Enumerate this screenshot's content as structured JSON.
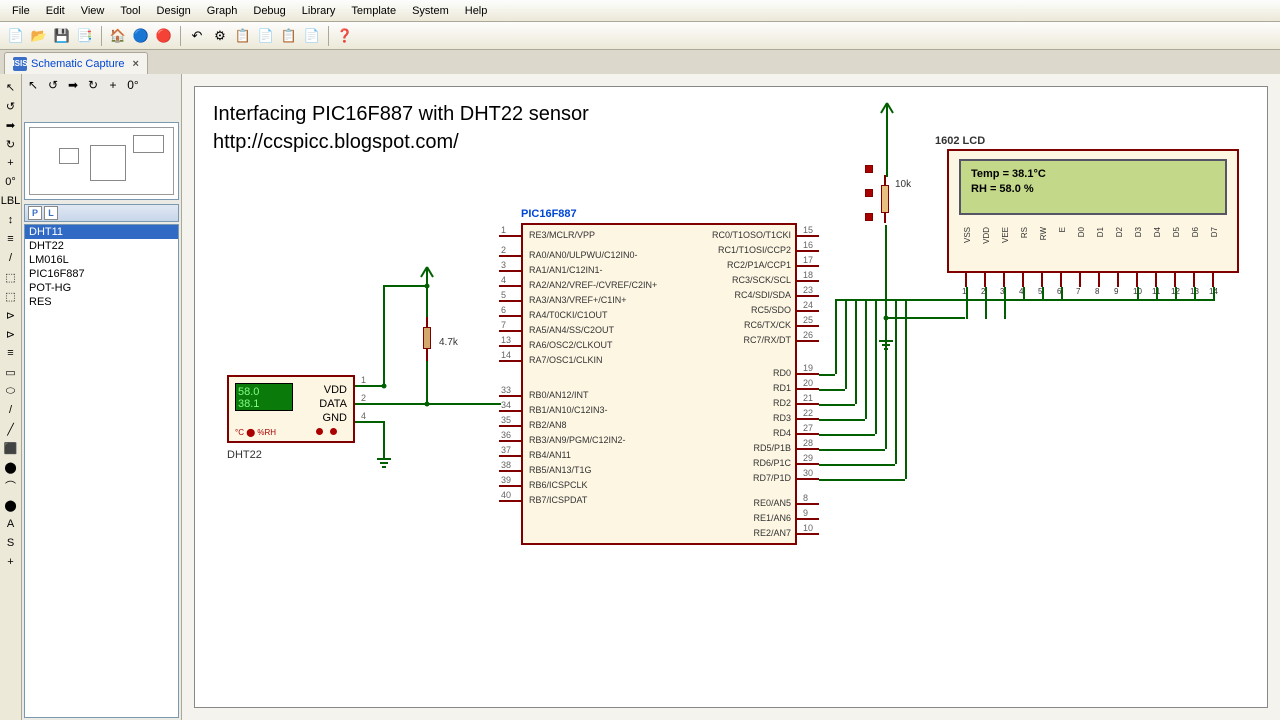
{
  "menubar": [
    "File",
    "Edit",
    "View",
    "Tool",
    "Design",
    "Graph",
    "Debug",
    "Library",
    "Template",
    "System",
    "Help"
  ],
  "toolbar_icons": [
    "📄",
    "📂",
    "💾",
    "📑",
    "|",
    "🏠",
    "🔵",
    "🔴",
    "|",
    "↶",
    "⚙",
    "📋",
    "📄",
    "📋",
    "📄",
    "|",
    "❓"
  ],
  "tab": {
    "label": "Schematic Capture",
    "close": "×"
  },
  "left_tools": [
    "↖",
    "↺",
    "➡",
    "↻",
    "+",
    "0°",
    "LBL",
    "↕",
    "≡",
    "/",
    "⬚",
    "⬚",
    "⊳",
    "⊳",
    "≡",
    "▭",
    "⬭",
    "/",
    "╱",
    "⬛",
    "⬤",
    "⌒",
    "⬤",
    "A",
    "S",
    "+"
  ],
  "top_buttons": [
    "↖",
    "↺",
    "➡",
    "↻",
    "+",
    "0°"
  ],
  "pl_header_btns": [
    "P",
    "L"
  ],
  "devices": [
    {
      "name": "DHT11",
      "sel": true
    },
    {
      "name": "DHT22",
      "sel": false
    },
    {
      "name": "LM016L",
      "sel": false
    },
    {
      "name": "PIC16F887",
      "sel": false
    },
    {
      "name": "POT-HG",
      "sel": false
    },
    {
      "name": "RES",
      "sel": false
    }
  ],
  "schematic": {
    "title": "Interfacing PIC16F887 with DHT22 sensor",
    "url": "http://ccspicc.blogspot.com/",
    "chip_label": "PIC16F887",
    "sensor_label": "DHT22",
    "sensor_lcd_line1": "58.0",
    "sensor_lcd_line2": "38.1",
    "sensor_foot": "°C ⬤ %RH",
    "sensor_pins": [
      "VDD",
      "DATA",
      "GND"
    ],
    "sensor_pin_nums": [
      "1",
      "2",
      "4"
    ],
    "res1": "4.7k",
    "res2": "10k",
    "lcd_label": "1602 LCD",
    "lcd_line1": "Temp = 38.1°C",
    "lcd_line2": "RH   = 58.0 %",
    "lcd_pins": [
      "VSS",
      "VDD",
      "VEE",
      "RS",
      "RW",
      "E",
      "D0",
      "D1",
      "D2",
      "D3",
      "D4",
      "D5",
      "D6",
      "D7"
    ],
    "left_pins": [
      {
        "n": "1",
        "name": "RE3/MCLR/VPP"
      },
      {
        "n": "2",
        "name": "RA0/AN0/ULPWU/C12IN0-"
      },
      {
        "n": "3",
        "name": "RA1/AN1/C12IN1-"
      },
      {
        "n": "4",
        "name": "RA2/AN2/VREF-/CVREF/C2IN+"
      },
      {
        "n": "5",
        "name": "RA3/AN3/VREF+/C1IN+"
      },
      {
        "n": "6",
        "name": "RA4/T0CKI/C1OUT"
      },
      {
        "n": "7",
        "name": "RA5/AN4/SS/C2OUT"
      },
      {
        "n": "13",
        "name": "RA6/OSC2/CLKOUT"
      },
      {
        "n": "14",
        "name": "RA7/OSC1/CLKIN"
      },
      {
        "n": "33",
        "name": "RB0/AN12/INT"
      },
      {
        "n": "34",
        "name": "RB1/AN10/C12IN3-"
      },
      {
        "n": "35",
        "name": "RB2/AN8"
      },
      {
        "n": "36",
        "name": "RB3/AN9/PGM/C12IN2-"
      },
      {
        "n": "37",
        "name": "RB4/AN11"
      },
      {
        "n": "38",
        "name": "RB5/AN13/T1G"
      },
      {
        "n": "39",
        "name": "RB6/ICSPCLK"
      },
      {
        "n": "40",
        "name": "RB7/ICSPDAT"
      }
    ],
    "right_pins": [
      {
        "n": "15",
        "name": "RC0/T1OSO/T1CKI"
      },
      {
        "n": "16",
        "name": "RC1/T1OSI/CCP2"
      },
      {
        "n": "17",
        "name": "RC2/P1A/CCP1"
      },
      {
        "n": "18",
        "name": "RC3/SCK/SCL"
      },
      {
        "n": "23",
        "name": "RC4/SDI/SDA"
      },
      {
        "n": "24",
        "name": "RC5/SDO"
      },
      {
        "n": "25",
        "name": "RC6/TX/CK"
      },
      {
        "n": "26",
        "name": "RC7/RX/DT"
      },
      {
        "n": "19",
        "name": "RD0"
      },
      {
        "n": "20",
        "name": "RD1"
      },
      {
        "n": "21",
        "name": "RD2"
      },
      {
        "n": "22",
        "name": "RD3"
      },
      {
        "n": "27",
        "name": "RD4"
      },
      {
        "n": "28",
        "name": "RD5/P1B"
      },
      {
        "n": "29",
        "name": "RD6/P1C"
      },
      {
        "n": "30",
        "name": "RD7/P1D"
      },
      {
        "n": "8",
        "name": "RE0/AN5"
      },
      {
        "n": "9",
        "name": "RE1/AN6"
      },
      {
        "n": "10",
        "name": "RE2/AN7"
      }
    ],
    "colors": {
      "wire": "#006000",
      "chip_border": "#800000",
      "chip_fill": "#fdf6e3",
      "lcd_fill": "#c4d88a",
      "sensor_lcd": "#0a7a0a",
      "label": "#0046d5"
    }
  }
}
